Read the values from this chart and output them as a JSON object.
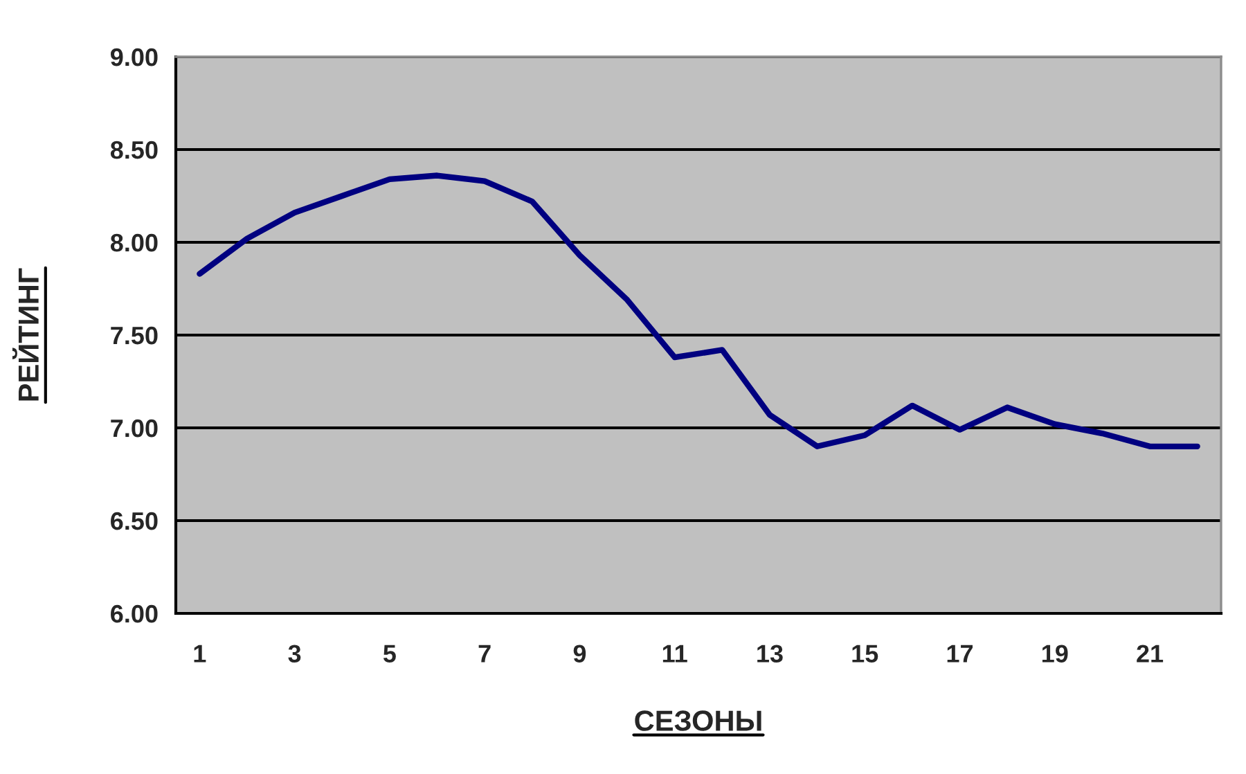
{
  "chart_data": {
    "type": "line",
    "xlabel": "СЕЗОНЫ",
    "ylabel": "РЕЙТИНГ",
    "categories": [
      "1",
      null,
      "3",
      null,
      "5",
      null,
      "7",
      null,
      "9",
      null,
      "11",
      null,
      "13",
      null,
      "15",
      null,
      "17",
      null,
      "19",
      null,
      "21",
      null
    ],
    "series": [
      {
        "color": "#000080",
        "values": [
          7.83,
          8.02,
          8.16,
          8.25,
          8.34,
          8.36,
          8.33,
          8.22,
          7.93,
          7.69,
          7.38,
          7.42,
          7.07,
          6.9,
          6.96,
          7.12,
          6.99,
          7.11,
          7.02,
          6.97,
          6.9,
          6.9
        ]
      }
    ],
    "ylim": [
      6,
      9
    ],
    "yticks": [
      {
        "value": 6,
        "label": "6.00"
      },
      {
        "value": 6.5,
        "label": "6.50"
      },
      {
        "value": 7,
        "label": "7.00"
      },
      {
        "value": 7.5,
        "label": "7.50"
      },
      {
        "value": 8,
        "label": "8.00"
      },
      {
        "value": 8.5,
        "label": "8.50"
      },
      {
        "value": 9,
        "label": "9.00"
      }
    ],
    "grid": "y",
    "line_style": "solid"
  }
}
